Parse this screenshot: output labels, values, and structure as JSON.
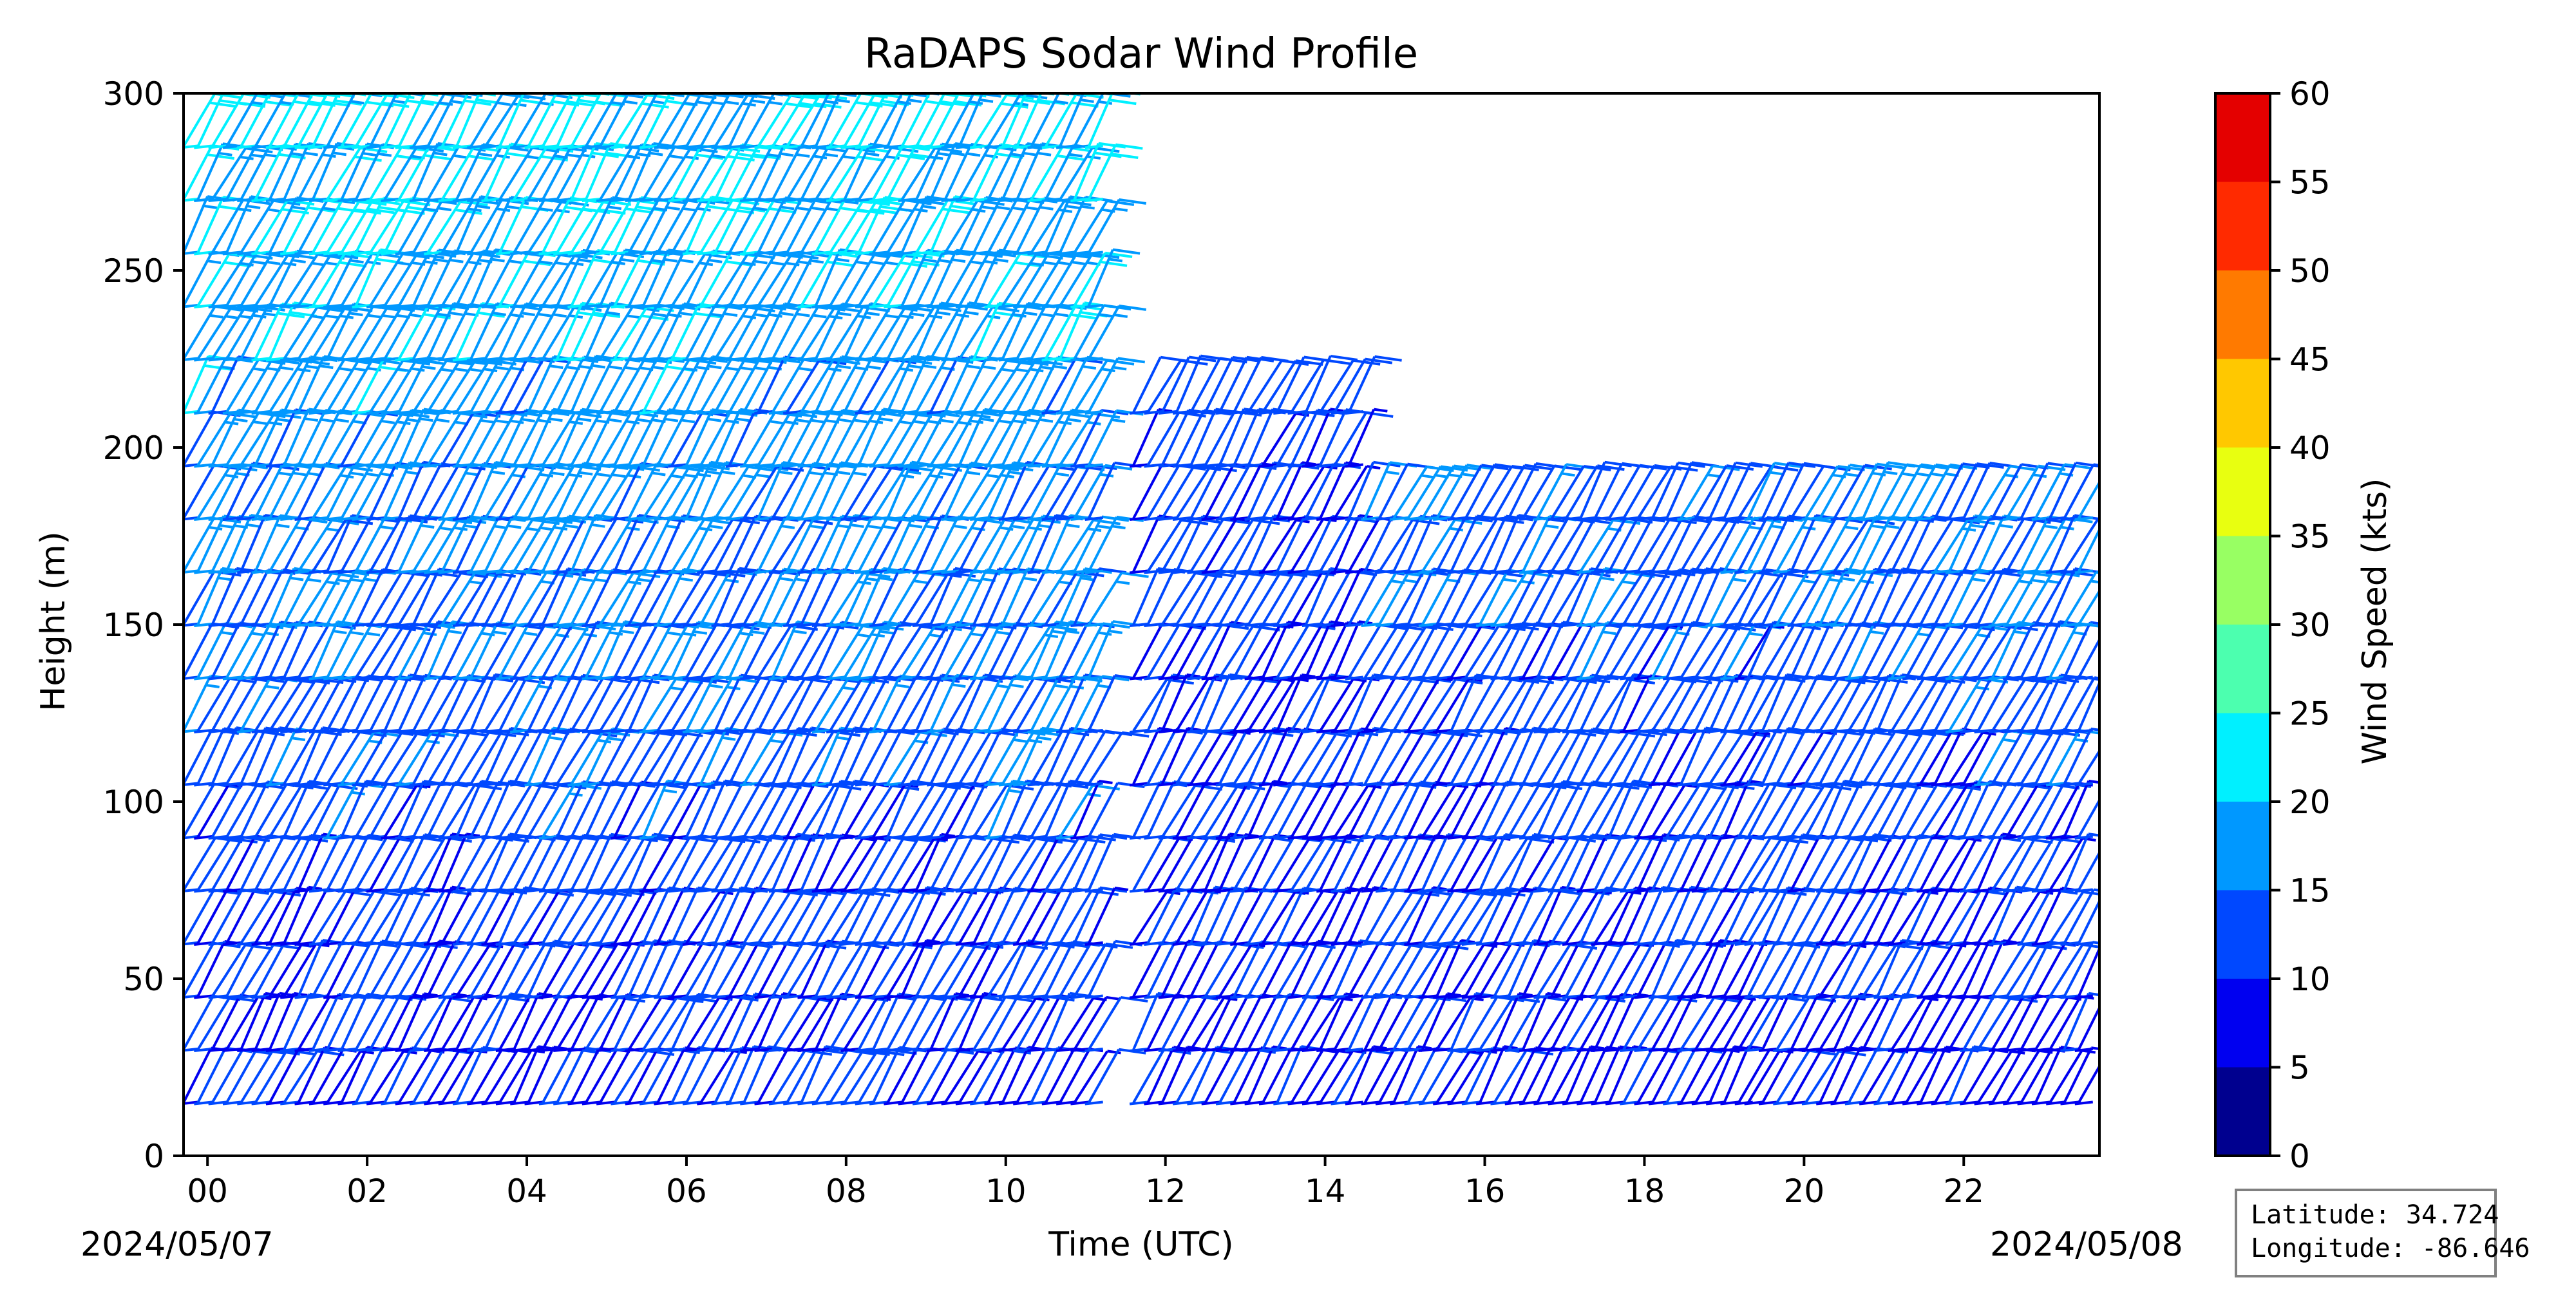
{
  "chart_data": {
    "type": "scatter",
    "mark": "wind barbs",
    "title": "RaDAPS Sodar Wind Profile",
    "xlabel": "Time (UTC)",
    "ylabel": "Height (m)",
    "x_tick_labels": [
      "00",
      "02",
      "04",
      "06",
      "08",
      "10",
      "12",
      "14",
      "16",
      "18",
      "20",
      "22"
    ],
    "x_tick_hours": [
      0,
      2,
      4,
      6,
      8,
      10,
      12,
      14,
      16,
      18,
      20,
      22
    ],
    "xlim_hours": [
      -0.3,
      23.7
    ],
    "start_date": "2024/05/07",
    "end_date": "2024/05/08",
    "y_ticks": [
      0,
      50,
      100,
      150,
      200,
      250,
      300
    ],
    "ylim": [
      0,
      300
    ],
    "height_levels_m": [
      15,
      30,
      45,
      60,
      75,
      90,
      105,
      120,
      135,
      150,
      165,
      180,
      195,
      210,
      225,
      240,
      255,
      270,
      285
    ],
    "series": [
      {
        "segments": [
          {
            "start_hour": -0.3,
            "end_hour": 11.1,
            "max_height_m": 300,
            "low_speed_kts": 9,
            "high_speed_kts": 21
          },
          {
            "start_hour": 11.6,
            "end_hour": 14.3,
            "max_height_m": 210,
            "low_speed_kts": 8,
            "high_speed_kts": 14
          },
          {
            "start_hour": 14.5,
            "end_hour": 19.2,
            "max_height_m": 190,
            "low_speed_kts": 9,
            "high_speed_kts": 17
          },
          {
            "start_hour": 19.3,
            "end_hour": 23.6,
            "max_height_m": 185,
            "low_speed_kts": 8,
            "high_speed_kts": 20
          }
        ]
      }
    ],
    "colorbar": {
      "label": "Wind Speed (kts)",
      "ticks": [
        0,
        5,
        10,
        15,
        20,
        25,
        30,
        35,
        40,
        45,
        50,
        55,
        60
      ],
      "range": [
        0,
        60
      ],
      "colors": [
        "#00008f",
        "#0000f0",
        "#0048ff",
        "#0098ff",
        "#00f0ff",
        "#4cffaf",
        "#98ff63",
        "#e8ff10",
        "#ffc800",
        "#ff7a00",
        "#ff2a00",
        "#e40000",
        "#7f0000"
      ]
    },
    "info_box": {
      "latitude": "Latitude: 34.724",
      "longitude": "Longitude: -86.646"
    }
  }
}
